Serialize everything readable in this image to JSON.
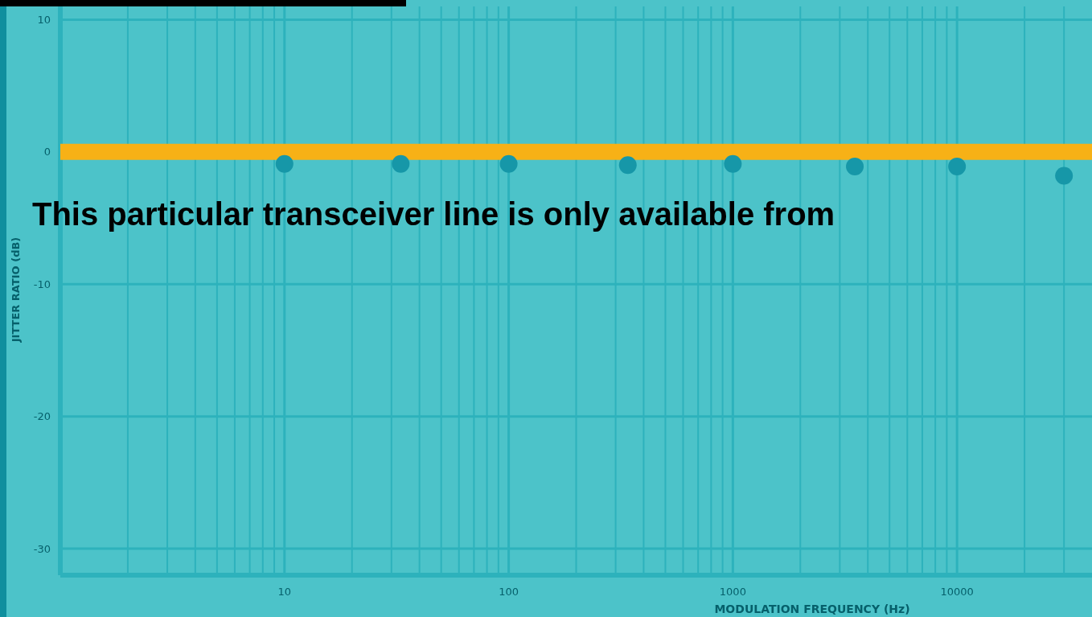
{
  "chart_data": {
    "type": "scatter",
    "xlabel": "MODULATION FREQUENCY (Hz)",
    "ylabel": "JITTER RATIO (dB)",
    "log": "x",
    "grid": true,
    "marker": "circle",
    "xlim": [
      1,
      40000
    ],
    "ylim": [
      -32,
      11
    ],
    "xticks": [
      {
        "value": 2,
        "label": null
      },
      {
        "value": 3,
        "label": null
      },
      {
        "value": 4,
        "label": null
      },
      {
        "value": 5,
        "label": null
      },
      {
        "value": 6,
        "label": null
      },
      {
        "value": 7,
        "label": null
      },
      {
        "value": 8,
        "label": null
      },
      {
        "value": 9,
        "label": null
      },
      10,
      {
        "value": 20,
        "label": null
      },
      {
        "value": 30,
        "label": null
      },
      {
        "value": 40,
        "label": null
      },
      {
        "value": 50,
        "label": null
      },
      {
        "value": 60,
        "label": null
      },
      {
        "value": 70,
        "label": null
      },
      {
        "value": 80,
        "label": null
      },
      {
        "value": 90,
        "label": null
      },
      100,
      {
        "value": 200,
        "label": null
      },
      {
        "value": 300,
        "label": null
      },
      {
        "value": 400,
        "label": null
      },
      {
        "value": 500,
        "label": null
      },
      {
        "value": 600,
        "label": null
      },
      {
        "value": 700,
        "label": null
      },
      {
        "value": 800,
        "label": null
      },
      {
        "value": 900,
        "label": null
      },
      1000,
      {
        "value": 2000,
        "label": null
      },
      {
        "value": 3000,
        "label": null
      },
      {
        "value": 4000,
        "label": null
      },
      {
        "value": 5000,
        "label": null
      },
      {
        "value": 6000,
        "label": null
      },
      {
        "value": 7000,
        "label": null
      },
      {
        "value": 8000,
        "label": null
      },
      {
        "value": 9000,
        "label": null
      },
      10000,
      {
        "value": 20000,
        "label": null
      },
      {
        "value": 30000,
        "label": null
      }
    ],
    "yticks": [
      10,
      0,
      -10,
      -20,
      -30
    ],
    "series": [
      {
        "type": "line",
        "color": "#f7b116",
        "x": [
          1,
          40000
        ],
        "values": [
          0,
          0
        ],
        "marker": "none"
      },
      {
        "color": "#1697a8",
        "x": [
          10,
          33,
          100,
          340,
          1000,
          3500,
          10000,
          30000
        ],
        "values": [
          -0.9,
          -0.9,
          -0.9,
          -1,
          -0.9,
          -1.1,
          -1.1,
          -1.8
        ]
      }
    ],
    "annotations": [
      "This particular transceiver line is only available from"
    ]
  }
}
